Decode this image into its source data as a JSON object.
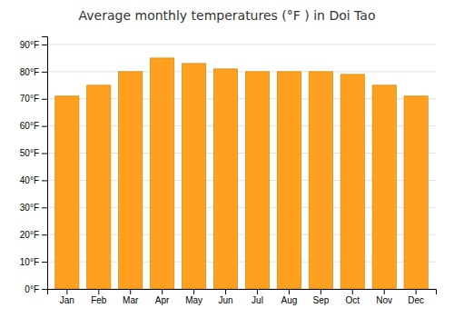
{
  "chart_data": {
    "type": "bar",
    "title": "Average monthly temperatures (°F ) in Doi Tao",
    "categories": [
      "Jan",
      "Feb",
      "Mar",
      "Apr",
      "May",
      "Jun",
      "Jul",
      "Aug",
      "Sep",
      "Oct",
      "Nov",
      "Dec"
    ],
    "values": [
      71,
      75,
      80,
      85,
      83,
      81,
      80,
      80,
      80,
      79,
      75,
      71
    ],
    "color": "#FFA020",
    "ylim": [
      0,
      93
    ],
    "yticks": [
      {
        "value": 0,
        "label": "0°F"
      },
      {
        "value": 10,
        "label": "10°F"
      },
      {
        "value": 20,
        "label": "20°F"
      },
      {
        "value": 30,
        "label": "30°F"
      },
      {
        "value": 40,
        "label": "40°F"
      },
      {
        "value": 50,
        "label": "50°F"
      },
      {
        "value": 60,
        "label": "60°F"
      },
      {
        "value": 70,
        "label": "70°F"
      },
      {
        "value": 80,
        "label": "80°F"
      },
      {
        "value": 90,
        "label": "90°F"
      }
    ],
    "grid": true
  }
}
